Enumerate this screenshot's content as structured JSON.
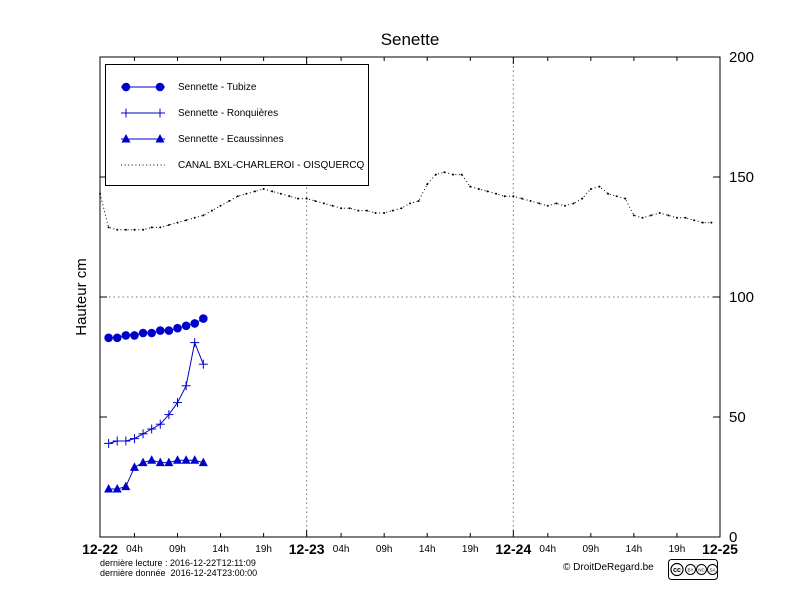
{
  "chart_data": {
    "type": "line",
    "title": "Senette",
    "ylabel": "Hauteur cm",
    "ylim": [
      0,
      200
    ],
    "yticks": [
      0,
      50,
      100,
      150,
      200
    ],
    "xlim": [
      0,
      72
    ],
    "x_days": [
      "12-22",
      "12-23",
      "12-24",
      "12-25"
    ],
    "hour_ticks": [
      "04h",
      "09h",
      "14h",
      "19h"
    ],
    "hour_tick_offsets": [
      4,
      9,
      14,
      19
    ],
    "grid": {
      "vertical_day_lines": [
        24,
        48
      ],
      "horizontal_lines": [
        100
      ]
    },
    "legend_position": "top-left",
    "series": [
      {
        "name": "Sennette - Tubize",
        "marker": "circle",
        "color": "#0000cd",
        "x": [
          1,
          2,
          3,
          4,
          5,
          6,
          7,
          8,
          9,
          10,
          11,
          12
        ],
        "values": [
          83,
          83,
          84,
          84,
          85,
          85,
          86,
          86,
          87,
          88,
          89,
          91
        ]
      },
      {
        "name": "Sennette - Ronquières",
        "marker": "plus",
        "color": "#0000cd",
        "x": [
          1,
          2,
          3,
          4,
          5,
          6,
          7,
          8,
          9,
          10,
          11,
          12
        ],
        "values": [
          39,
          40,
          40,
          41,
          43,
          45,
          47,
          51,
          56,
          63,
          81,
          72
        ]
      },
      {
        "name": "Sennette - Ecaussinnes",
        "marker": "triangle",
        "color": "#0000cd",
        "x": [
          1,
          2,
          3,
          4,
          5,
          6,
          7,
          8,
          9,
          10,
          11,
          12
        ],
        "values": [
          20,
          20,
          21,
          29,
          31,
          32,
          31,
          31,
          32,
          32,
          32,
          31
        ]
      },
      {
        "name": "CANAL BXL-CHARLEROI - OISQUERCQ",
        "marker": "dot",
        "style": "dotted",
        "color": "#000000",
        "x": [
          0,
          1,
          2,
          3,
          4,
          5,
          6,
          7,
          8,
          9,
          10,
          11,
          12,
          13,
          14,
          15,
          16,
          17,
          18,
          19,
          20,
          21,
          22,
          23,
          24,
          25,
          26,
          27,
          28,
          29,
          30,
          31,
          32,
          33,
          34,
          35,
          36,
          37,
          38,
          39,
          40,
          41,
          42,
          43,
          44,
          45,
          46,
          47,
          48,
          49,
          50,
          51,
          52,
          53,
          54,
          55,
          56,
          57,
          58,
          59,
          60,
          61,
          62,
          63,
          64,
          65,
          66,
          67,
          68,
          69,
          70,
          71
        ],
        "values": [
          143,
          129,
          128,
          128,
          128,
          128,
          129,
          129,
          130,
          131,
          132,
          133,
          134,
          136,
          138,
          140,
          142,
          143,
          144,
          145,
          144,
          143,
          142,
          141,
          141,
          140,
          139,
          138,
          137,
          137,
          136,
          136,
          135,
          135,
          136,
          137,
          139,
          140,
          147,
          151,
          152,
          151,
          151,
          146,
          145,
          144,
          143,
          142,
          142,
          141,
          140,
          139,
          138,
          139,
          138,
          139,
          141,
          145,
          146,
          143,
          142,
          141,
          134,
          133,
          134,
          135,
          134,
          133,
          133,
          132,
          131,
          131
        ]
      }
    ]
  },
  "footer": {
    "last_read": "dernière lecture : 2016-12-22T12:11:09",
    "last_data": "dernière donnée  2016-12-24T23:00:00",
    "copyright": "© DroitDeRegard.be",
    "license": {
      "cc": "cc",
      "letters": [
        "BY",
        "NC",
        "SA"
      ]
    }
  }
}
